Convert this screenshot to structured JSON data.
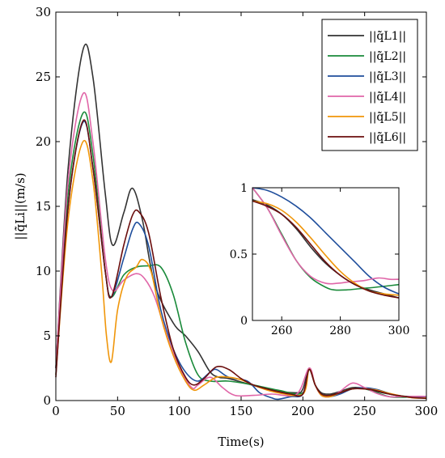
{
  "chart_data": [
    {
      "type": "line",
      "title": "",
      "xlabel": "Time(s)",
      "ylabel": "||q̇̃Li||(m/s)",
      "xlim": [
        0,
        300
      ],
      "ylim": [
        0,
        30
      ],
      "xticks": [
        "0",
        "50",
        "100",
        "150",
        "200",
        "250",
        "300"
      ],
      "yticks": [
        "0",
        "5",
        "10",
        "15",
        "20",
        "25",
        "30"
      ],
      "grid": false,
      "legend": "top-right",
      "series": [
        {
          "name": "||q̇̃L1||",
          "color": "#333333",
          "x": [
            0,
            10,
            22,
            30,
            40,
            46,
            55,
            62,
            70,
            80,
            95,
            105,
            115,
            125,
            132,
            140,
            155,
            175,
            195,
            200,
            205,
            210,
            215,
            222,
            230,
            240,
            250,
            260,
            270,
            280,
            290,
            300
          ],
          "y": [
            2.5,
            18,
            27.1,
            25,
            16,
            12,
            14.5,
            16.4,
            14,
            9,
            6,
            5,
            3.8,
            2.2,
            1.8,
            1.7,
            1.3,
            0.8,
            0.6,
            0.9,
            2.4,
            1.2,
            0.6,
            0.5,
            0.7,
            1.0,
            0.95,
            0.7,
            0.5,
            0.35,
            0.3,
            0.25
          ]
        },
        {
          "name": "||q̇̃L2||",
          "color": "#1a8a3a",
          "x": [
            0,
            10,
            22,
            30,
            40,
            45,
            55,
            65,
            75,
            85,
            95,
            105,
            115,
            125,
            140,
            160,
            180,
            200,
            205,
            210,
            215,
            222,
            230,
            240,
            250,
            260,
            270,
            280,
            290,
            300
          ],
          "y": [
            2.5,
            16,
            22.2,
            19,
            10,
            8,
            9.7,
            10.3,
            10.4,
            10.3,
            8.2,
            4.5,
            2.0,
            1.5,
            1.5,
            1.2,
            0.8,
            0.6,
            2.5,
            1.2,
            0.5,
            0.4,
            0.6,
            0.9,
            0.9,
            0.6,
            0.3,
            0.25,
            0.28,
            0.27
          ]
        },
        {
          "name": "||q̇̃L3||",
          "color": "#1f4e9c",
          "x": [
            0,
            10,
            22,
            30,
            40,
            45,
            55,
            62,
            67,
            75,
            85,
            95,
            105,
            115,
            125,
            130,
            140,
            155,
            165,
            175,
            180,
            190,
            200,
            205,
            210,
            215,
            222,
            230,
            240,
            250,
            260,
            270,
            280,
            290,
            300
          ],
          "y": [
            2.0,
            15,
            21.5,
            18,
            10,
            8,
            11,
            13.2,
            13.7,
            12,
            7,
            4,
            2.2,
            1.5,
            2.2,
            2.4,
            1.8,
            1.5,
            0.6,
            0.2,
            0.1,
            0.3,
            0.5,
            2.4,
            1.2,
            0.4,
            0.3,
            0.5,
            0.9,
            0.99,
            0.85,
            0.55,
            0.32,
            0.22,
            0.25
          ]
        },
        {
          "name": "||q̇̃L4||",
          "color": "#e066a8",
          "x": [
            0,
            10,
            22,
            30,
            40,
            46,
            55,
            65,
            72,
            80,
            90,
            100,
            110,
            115,
            125,
            135,
            145,
            160,
            175,
            195,
            205,
            210,
            215,
            222,
            230,
            240,
            250,
            260,
            270,
            280,
            290,
            300
          ],
          "y": [
            2.5,
            17,
            23.7,
            20,
            11,
            8.5,
            9.3,
            9.8,
            9.4,
            8,
            5,
            2.5,
            1.0,
            1.2,
            1.8,
            1.0,
            0.4,
            0.4,
            0.5,
            0.5,
            2.5,
            1.2,
            0.4,
            0.3,
            0.7,
            1.35,
            1.0,
            0.55,
            0.3,
            0.3,
            0.32,
            0.32
          ]
        },
        {
          "name": "||q̇̃L5||",
          "color": "#f0960a",
          "x": [
            0,
            10,
            22,
            30,
            37,
            41,
            45,
            50,
            57,
            65,
            70,
            77,
            85,
            95,
            105,
            112,
            120,
            130,
            140,
            150,
            165,
            180,
            200,
            205,
            210,
            215,
            222,
            230,
            240,
            250,
            260,
            270,
            280,
            290,
            300
          ],
          "y": [
            2.0,
            14,
            20,
            17,
            10,
            5,
            3,
            7,
            9.5,
            10.3,
            10.9,
            10,
            6.5,
            3.5,
            1.5,
            0.8,
            1.2,
            1.8,
            1.8,
            1.6,
            1.0,
            0.6,
            0.5,
            2.4,
            1.2,
            0.4,
            0.3,
            0.6,
            0.9,
            0.9,
            0.8,
            0.55,
            0.35,
            0.2,
            0.2
          ]
        },
        {
          "name": "||q̇̃L6||",
          "color": "#6b0e0e",
          "x": [
            0,
            10,
            22,
            30,
            40,
            45,
            55,
            62,
            67,
            75,
            85,
            95,
            105,
            112,
            120,
            130,
            140,
            150,
            160,
            175,
            190,
            200,
            205,
            210,
            215,
            222,
            230,
            240,
            250,
            260,
            270,
            280,
            290,
            300
          ],
          "y": [
            1.8,
            15,
            21.6,
            18,
            10,
            8,
            12,
            14.3,
            14.6,
            13,
            8,
            4,
            1.8,
            1.2,
            1.7,
            2.6,
            2.4,
            1.7,
            1.2,
            0.8,
            0.5,
            0.5,
            2.4,
            1.2,
            0.5,
            0.4,
            0.6,
            0.9,
            0.9,
            0.75,
            0.5,
            0.35,
            0.22,
            0.17
          ]
        }
      ]
    },
    {
      "type": "line",
      "title": "",
      "xlabel": "",
      "ylabel": "",
      "xlim": [
        250,
        300
      ],
      "ylim": [
        0,
        1
      ],
      "xticks": [
        "260",
        "280",
        "300"
      ],
      "yticks": [
        "0",
        "0.5",
        "1"
      ],
      "grid": false,
      "series": [
        {
          "color": "#333333",
          "x": [
            250,
            255,
            260,
            265,
            270,
            275,
            280,
            285,
            290,
            295,
            300
          ],
          "y": [
            0.91,
            0.87,
            0.8,
            0.69,
            0.55,
            0.43,
            0.34,
            0.27,
            0.23,
            0.2,
            0.17
          ]
        },
        {
          "color": "#1a8a3a",
          "x": [
            250,
            255,
            260,
            265,
            270,
            275,
            278,
            282,
            287,
            292,
            296,
            300
          ],
          "y": [
            1.0,
            0.85,
            0.65,
            0.45,
            0.32,
            0.25,
            0.23,
            0.23,
            0.24,
            0.25,
            0.26,
            0.27
          ]
        },
        {
          "color": "#1f4e9c",
          "x": [
            250,
            255,
            260,
            265,
            270,
            275,
            280,
            285,
            290,
            295,
            300
          ],
          "y": [
            1.0,
            0.98,
            0.93,
            0.86,
            0.77,
            0.66,
            0.55,
            0.44,
            0.33,
            0.25,
            0.2
          ]
        },
        {
          "color": "#e066a8",
          "x": [
            250,
            255,
            260,
            265,
            270,
            275,
            279,
            283,
            288,
            293,
            297,
            300
          ],
          "y": [
            1.0,
            0.85,
            0.64,
            0.45,
            0.33,
            0.28,
            0.28,
            0.29,
            0.3,
            0.32,
            0.31,
            0.31
          ]
        },
        {
          "color": "#f0960a",
          "x": [
            250,
            255,
            260,
            265,
            270,
            275,
            280,
            285,
            290,
            295,
            300
          ],
          "y": [
            0.9,
            0.88,
            0.83,
            0.74,
            0.62,
            0.49,
            0.37,
            0.28,
            0.22,
            0.2,
            0.19
          ]
        },
        {
          "color": "#6b0e0e",
          "x": [
            250,
            255,
            260,
            265,
            270,
            275,
            280,
            285,
            290,
            295,
            300
          ],
          "y": [
            0.9,
            0.86,
            0.8,
            0.7,
            0.57,
            0.44,
            0.34,
            0.27,
            0.22,
            0.19,
            0.17
          ]
        }
      ]
    }
  ]
}
